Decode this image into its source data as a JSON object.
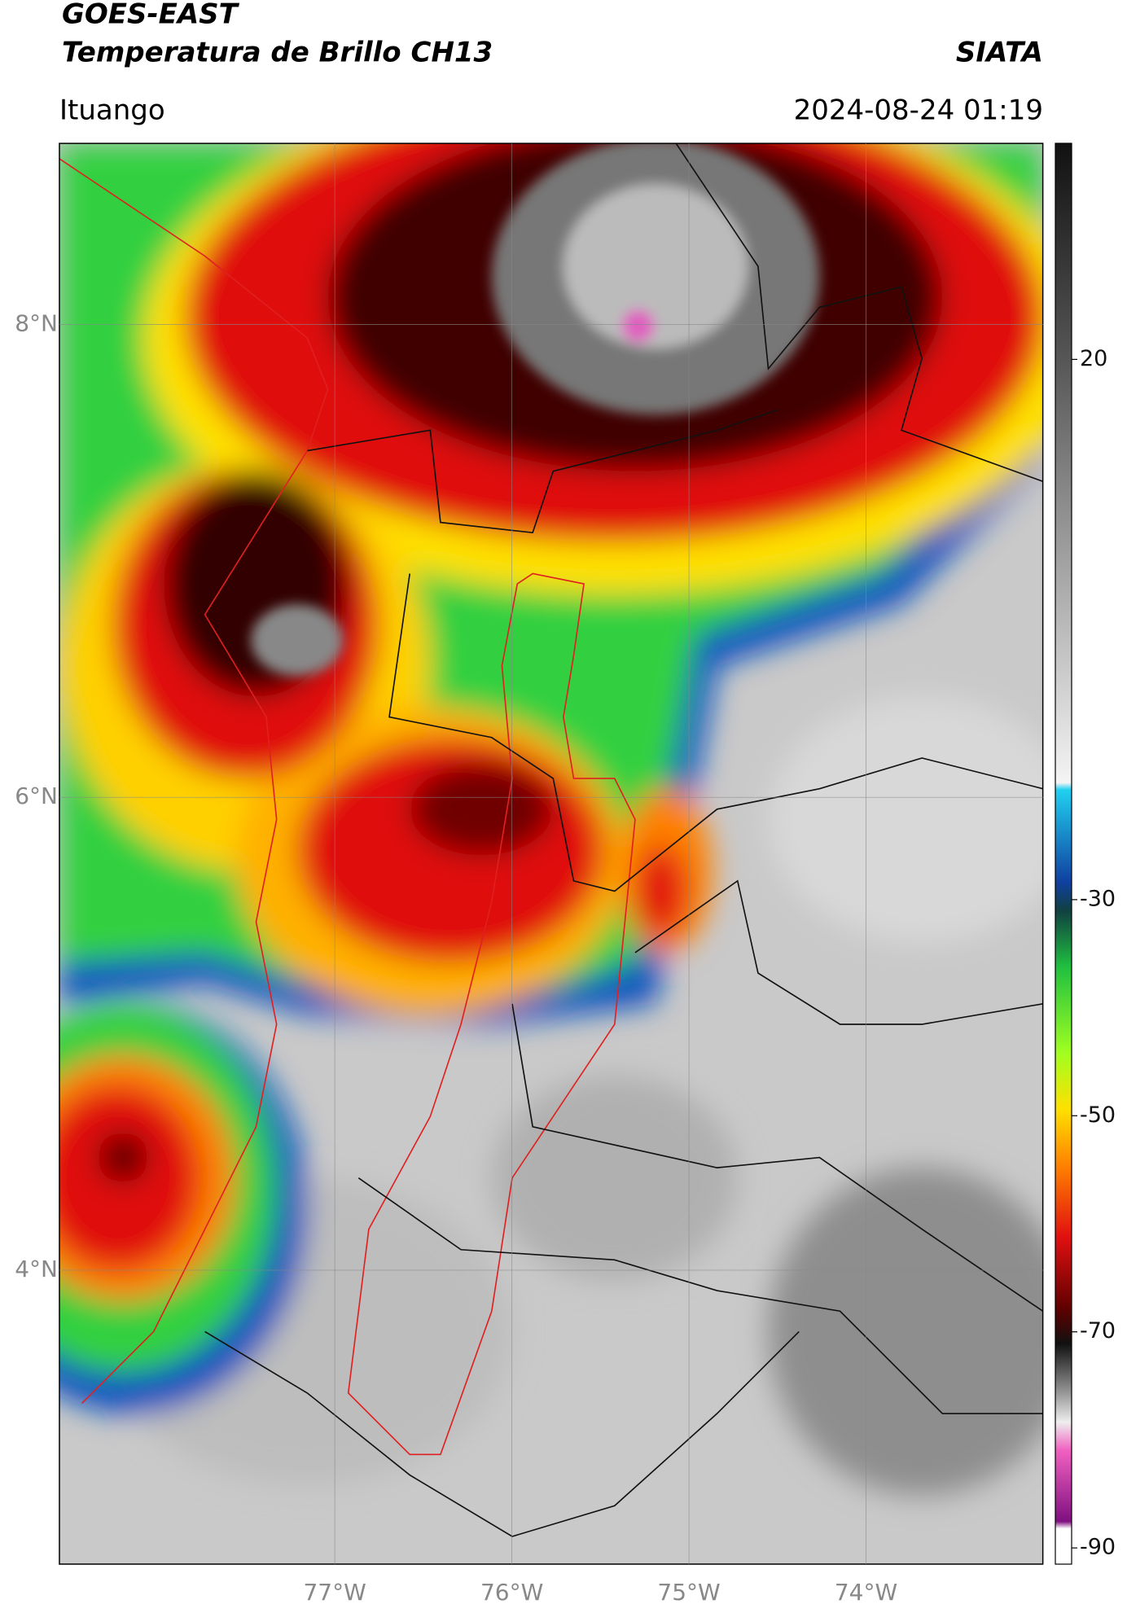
{
  "header": {
    "title": "GOES-EAST",
    "subtitle": "Temperatura de Brillo CH13",
    "brand": "SIATA",
    "location": "Ituango",
    "datetime": "2024-08-24 01:19"
  },
  "map": {
    "lat_range": [
      2.757,
      8.766
    ],
    "lon_range": [
      -78.555,
      -73.0
    ],
    "lat_ticks": [
      {
        "value": 8,
        "label": "8°N"
      },
      {
        "value": 6,
        "label": "6°N"
      },
      {
        "value": 4,
        "label": "4°N"
      }
    ],
    "lon_ticks": [
      {
        "value": -77,
        "label": "77°W"
      },
      {
        "value": -76,
        "label": "76°W"
      },
      {
        "value": -75,
        "label": "75°W"
      },
      {
        "value": -74,
        "label": "74°W"
      }
    ]
  },
  "colorbar": {
    "range": [
      40,
      -91.5
    ],
    "ticks": [
      20,
      -30,
      -50,
      -70,
      -90
    ]
  }
}
